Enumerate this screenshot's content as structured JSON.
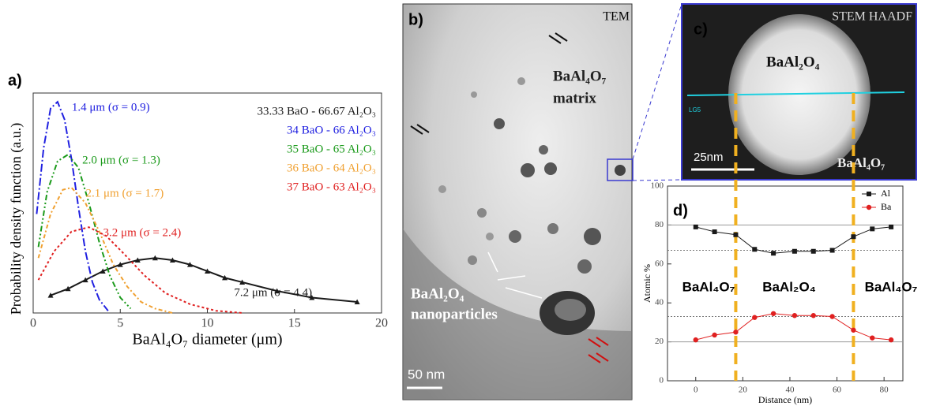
{
  "chart_data": [
    {
      "type": "line",
      "label": "a)",
      "xlabel": "BaAl₄O₇ diameter (μm)",
      "ylabel": "Probability density function (a.u.)",
      "xlim": [
        0,
        20
      ],
      "ylim": [
        0,
        1
      ],
      "xticks": [
        0,
        5,
        10,
        15,
        20
      ],
      "series": [
        {
          "name": "33.33 BaO - 66.67 Al₂O₃",
          "color": "#1a1a1a",
          "annotation": "7.2 μm (σ = 4.4)",
          "marker": "triangle",
          "x": [
            1,
            2,
            3,
            4,
            5,
            6,
            7,
            8,
            9,
            10,
            11,
            12,
            14,
            16,
            18.6
          ],
          "values": [
            0.08,
            0.11,
            0.15,
            0.19,
            0.22,
            0.24,
            0.25,
            0.24,
            0.22,
            0.19,
            0.16,
            0.14,
            0.1,
            0.07,
            0.05
          ]
        },
        {
          "name": "34 BaO - 66 Al₂O₃",
          "color": "#2020e0",
          "annotation": "1.4 μm (σ = 0.9)",
          "x": [
            0.2,
            0.6,
            1.0,
            1.4,
            1.8,
            2.2,
            2.6,
            3.0,
            3.4,
            3.8,
            4.3
          ],
          "values": [
            0.45,
            0.75,
            0.93,
            0.96,
            0.88,
            0.7,
            0.48,
            0.28,
            0.14,
            0.06,
            0.01
          ]
        },
        {
          "name": "35 BaO - 65 Al₂O₃",
          "color": "#1a9a1a",
          "annotation": "2.0 μm (σ = 1.3)",
          "x": [
            0.3,
            0.8,
            1.4,
            2.0,
            2.6,
            3.2,
            3.8,
            4.4,
            5.0,
            5.6
          ],
          "values": [
            0.3,
            0.55,
            0.69,
            0.72,
            0.66,
            0.5,
            0.32,
            0.17,
            0.07,
            0.02
          ]
        },
        {
          "name": "36 BaO - 64 Al₂O₃",
          "color": "#f0a030",
          "annotation": "2.1 μm (σ = 1.7)",
          "x": [
            0.3,
            1.0,
            1.7,
            2.2,
            3.0,
            3.8,
            4.6,
            5.4,
            6.2,
            7.0,
            8.0
          ],
          "values": [
            0.25,
            0.45,
            0.56,
            0.57,
            0.5,
            0.37,
            0.22,
            0.12,
            0.05,
            0.02,
            0.0
          ]
        },
        {
          "name": "37 BaO - 63 Al₂O₃",
          "color": "#e02020",
          "annotation": "3.2 μm (σ = 2.4)",
          "x": [
            0.3,
            1.2,
            2.2,
            3.2,
            4.2,
            5.2,
            6.4,
            7.6,
            9.0,
            10.5,
            12.0
          ],
          "values": [
            0.15,
            0.28,
            0.37,
            0.39,
            0.35,
            0.27,
            0.17,
            0.09,
            0.04,
            0.01,
            0.0
          ]
        }
      ]
    },
    {
      "type": "line",
      "label": "d)",
      "xlabel": "Distance (nm)",
      "ylabel": "Atomic %",
      "xlim": [
        -12,
        88
      ],
      "ylim": [
        0,
        100
      ],
      "xticks": [
        0,
        20,
        40,
        60,
        80
      ],
      "yticks": [
        0,
        20,
        40,
        60,
        80,
        100
      ],
      "x": [
        0,
        8,
        17,
        25,
        33,
        42,
        50,
        58,
        67,
        75,
        83
      ],
      "series": [
        {
          "name": "Al",
          "color": "#1a1a1a",
          "marker": "square",
          "values": [
            79,
            76.5,
            75,
            67.5,
            65.5,
            66.5,
            66.5,
            67,
            74,
            78,
            79
          ]
        },
        {
          "name": "Ba",
          "color": "#e02020",
          "marker": "circle",
          "values": [
            21,
            23.5,
            25,
            32.5,
            34.5,
            33.5,
            33.5,
            33,
            26,
            22,
            21
          ]
        }
      ],
      "reference_lines": [
        {
          "value": 80,
          "style": "solid"
        },
        {
          "value": 67,
          "style": "dotted"
        },
        {
          "value": 33,
          "style": "dotted"
        },
        {
          "value": 20,
          "style": "solid"
        }
      ],
      "boundaries": [
        17,
        67
      ],
      "region_labels": [
        "BaAl₄O₇",
        "BaAl₂O₄",
        "BaAl₄O₇"
      ]
    }
  ],
  "panels": {
    "b": {
      "label": "b)",
      "mode": "TEM",
      "matrix_line1": "BaAl₄O₇",
      "matrix_line2": "matrix",
      "np_line1": "BaAl₂O₄",
      "np_line2": "nanoparticles",
      "scale": "50 nm"
    },
    "c": {
      "label": "c)",
      "mode": "STEM HAADF",
      "particle": "BaAl₂O₄",
      "scale": "25nm",
      "matrix": "BaAl₄O₇",
      "line_tag": "LG5"
    }
  }
}
